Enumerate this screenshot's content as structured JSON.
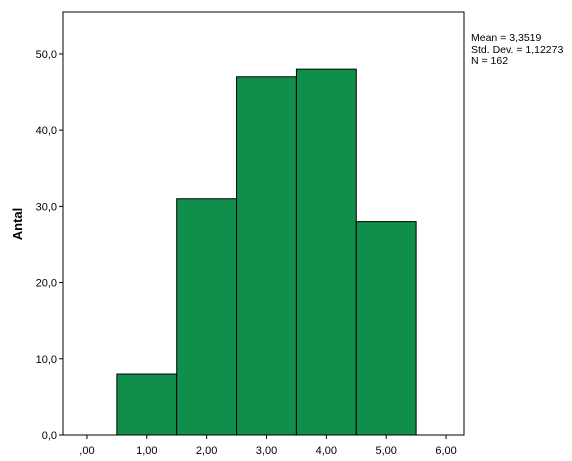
{
  "chart_data": {
    "type": "bar",
    "title": "",
    "xlabel": "",
    "ylabel": "Antal",
    "x_ticks": [
      ",00",
      "1,00",
      "2,00",
      "3,00",
      "4,00",
      "5,00",
      "6,00"
    ],
    "y_ticks": [
      "0,0",
      "10,0",
      "20,0",
      "30,0",
      "40,0",
      "50,0"
    ],
    "xlim": [
      -0.4,
      6.3
    ],
    "ylim": [
      0,
      55.5
    ],
    "bins": [
      {
        "center": 1,
        "width": 1,
        "value": 8
      },
      {
        "center": 2,
        "width": 1,
        "value": 31
      },
      {
        "center": 3,
        "width": 1,
        "value": 47
      },
      {
        "center": 4,
        "width": 1,
        "value": 48
      },
      {
        "center": 5,
        "width": 1,
        "value": 28
      }
    ],
    "bar_color": "#0f8f4a",
    "grid": false,
    "stats": [
      "Mean = 3,3519",
      "Std. Dev. = 1,12273",
      "N = 162"
    ]
  }
}
